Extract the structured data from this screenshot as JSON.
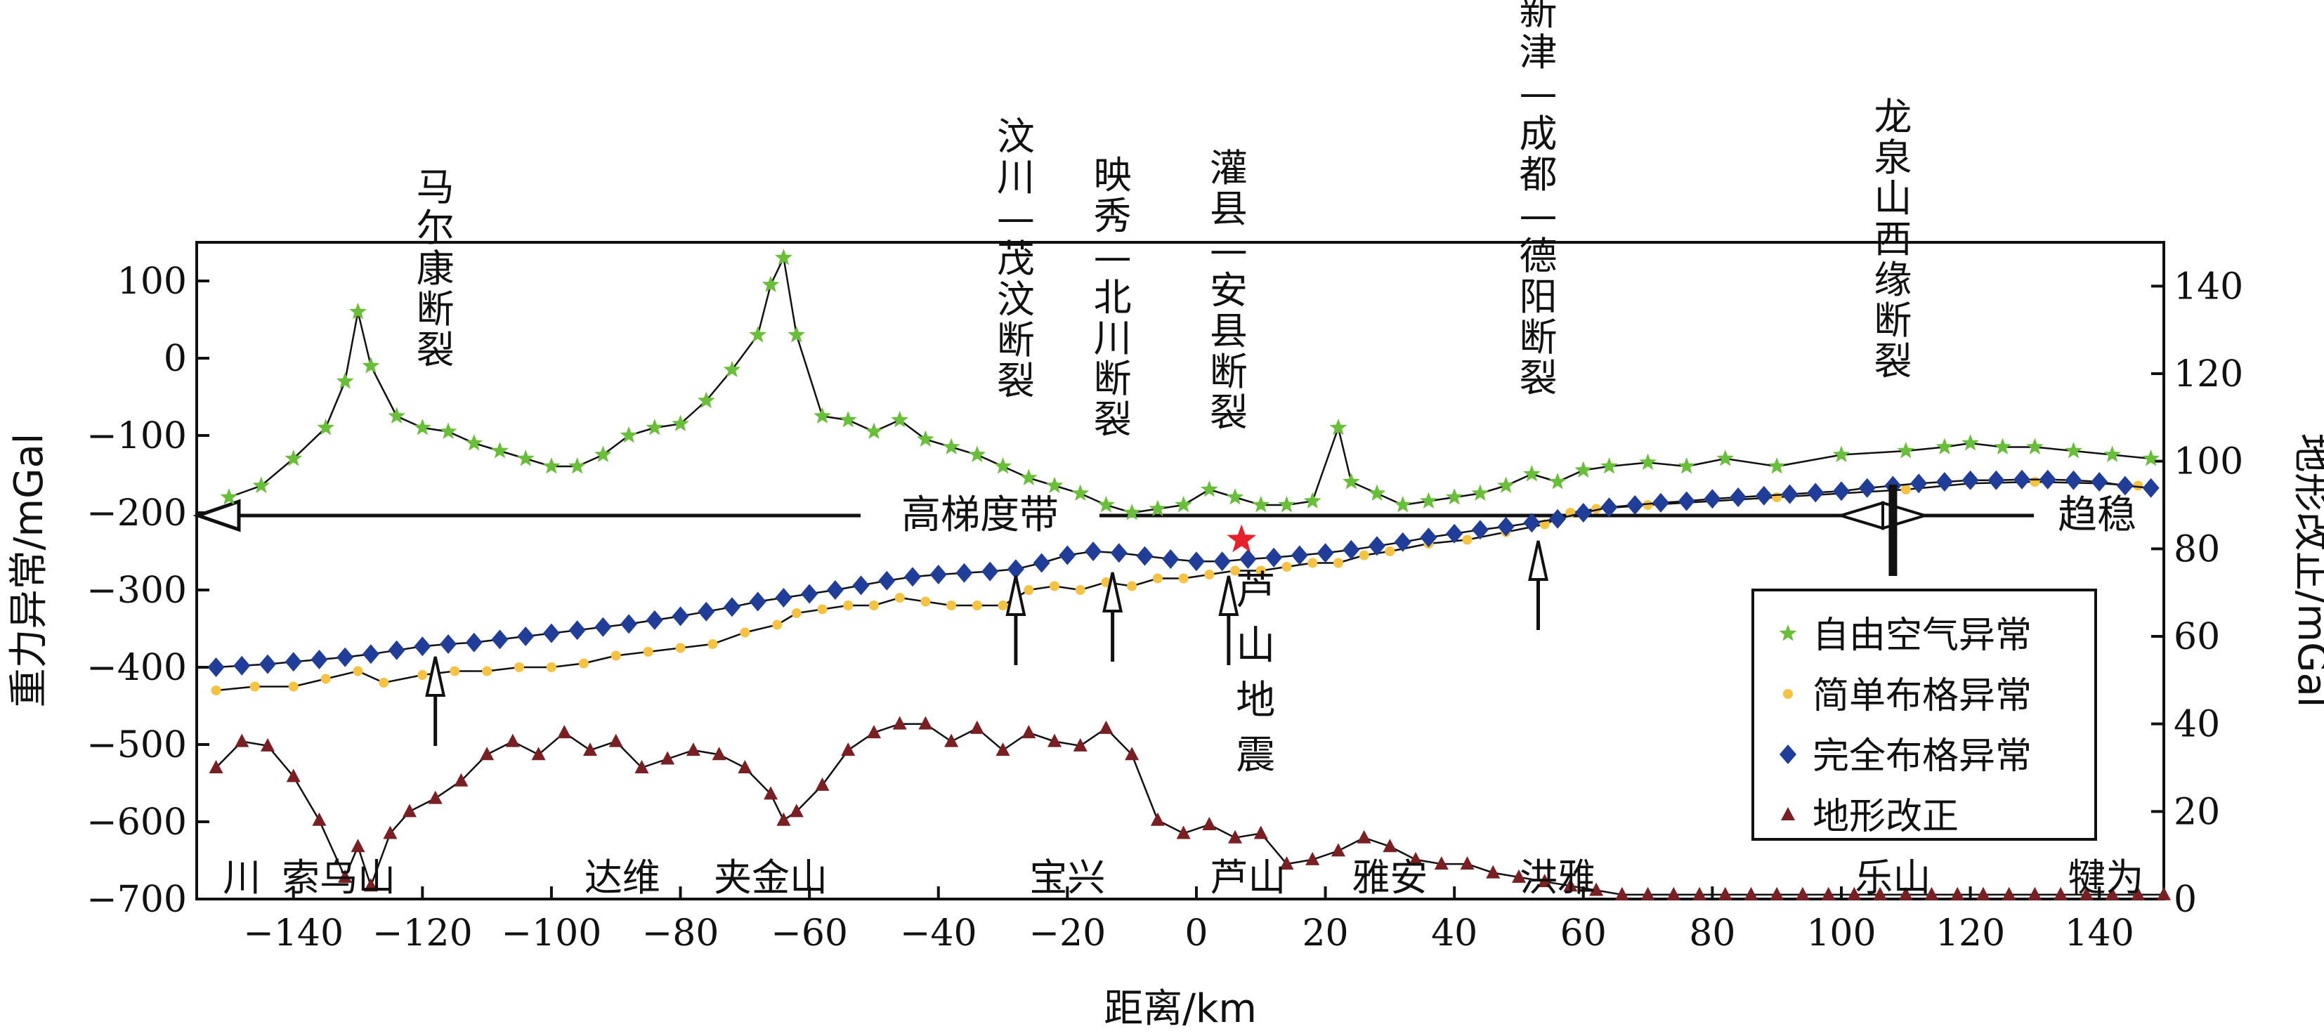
{
  "chart_data": {
    "type": "line",
    "title": "",
    "xlabel": "距离/km",
    "ylabel_left": "重力异常/mGal",
    "ylabel_right": "地形改正/mGal",
    "xlim": [
      -155,
      150
    ],
    "ylim_left": [
      -700,
      150
    ],
    "ylim_right": [
      0,
      150
    ],
    "x_ticks": [
      -140,
      -120,
      -100,
      -80,
      -60,
      -40,
      -20,
      0,
      20,
      40,
      60,
      80,
      100,
      120,
      140
    ],
    "y_left_ticks": [
      100,
      0,
      -100,
      -200,
      -300,
      -400,
      -500,
      -600,
      -700
    ],
    "y_right_ticks": [
      140,
      120,
      100,
      80,
      60,
      40,
      20,
      0
    ],
    "grid": false,
    "legend_position": "right",
    "series": [
      {
        "name": "自由空气异常",
        "axis": "left",
        "color": "#6abf3a",
        "marker": "star",
        "x": [
          -150,
          -145,
          -140,
          -135,
          -132,
          -130,
          -128,
          -124,
          -120,
          -116,
          -112,
          -108,
          -104,
          -100,
          -96,
          -92,
          -88,
          -84,
          -80,
          -76,
          -72,
          -68,
          -66,
          -64,
          -62,
          -58,
          -54,
          -50,
          -46,
          -42,
          -38,
          -34,
          -30,
          -26,
          -22,
          -18,
          -14,
          -10,
          -6,
          -2,
          2,
          6,
          10,
          14,
          18,
          22,
          24,
          28,
          32,
          36,
          40,
          44,
          48,
          52,
          56,
          60,
          64,
          70,
          76,
          82,
          90,
          100,
          110,
          116,
          120,
          125,
          130,
          136,
          142,
          148
        ],
        "y": [
          -180,
          -165,
          -130,
          -90,
          -30,
          60,
          -10,
          -75,
          -90,
          -95,
          -110,
          -120,
          -130,
          -140,
          -140,
          -125,
          -100,
          -90,
          -85,
          -55,
          -15,
          30,
          95,
          130,
          30,
          -75,
          -80,
          -95,
          -80,
          -105,
          -115,
          -125,
          -140,
          -155,
          -165,
          -175,
          -190,
          -200,
          -195,
          -190,
          -170,
          -180,
          -190,
          -190,
          -185,
          -90,
          -160,
          -175,
          -190,
          -185,
          -180,
          -175,
          -165,
          -150,
          -160,
          -145,
          -140,
          -135,
          -140,
          -130,
          -140,
          -125,
          -120,
          -115,
          -110,
          -115,
          -115,
          -120,
          -125,
          -130
        ]
      },
      {
        "name": "简单布格异常",
        "axis": "left",
        "color": "#f5c242",
        "marker": "circle",
        "x": [
          -152,
          -146,
          -140,
          -135,
          -130,
          -126,
          -120,
          -115,
          -110,
          -105,
          -100,
          -95,
          -90,
          -85,
          -80,
          -75,
          -70,
          -65,
          -62,
          -58,
          -54,
          -50,
          -46,
          -42,
          -38,
          -34,
          -30,
          -26,
          -22,
          -18,
          -14,
          -10,
          -6,
          -2,
          2,
          6,
          10,
          14,
          18,
          22,
          26,
          30,
          36,
          42,
          48,
          54,
          58,
          62,
          70,
          80,
          90,
          100,
          110,
          120,
          130,
          140,
          146
        ],
        "y": [
          -430,
          -425,
          -425,
          -415,
          -405,
          -420,
          -410,
          -405,
          -405,
          -400,
          -400,
          -395,
          -385,
          -380,
          -375,
          -370,
          -355,
          -345,
          -330,
          -325,
          -320,
          -320,
          -310,
          -315,
          -320,
          -320,
          -320,
          -300,
          -295,
          -300,
          -290,
          -295,
          -285,
          -285,
          -280,
          -275,
          -275,
          -270,
          -265,
          -265,
          -255,
          -250,
          -240,
          -235,
          -225,
          -215,
          -200,
          -195,
          -190,
          -185,
          -180,
          -175,
          -170,
          -162,
          -160,
          -162,
          -165
        ]
      },
      {
        "name": "完全布格异常",
        "axis": "left",
        "color": "#1f3d99",
        "marker": "diamond",
        "x": [
          -152,
          -148,
          -144,
          -140,
          -136,
          -132,
          -128,
          -124,
          -120,
          -116,
          -112,
          -108,
          -104,
          -100,
          -96,
          -92,
          -88,
          -84,
          -80,
          -76,
          -72,
          -68,
          -64,
          -60,
          -56,
          -52,
          -48,
          -44,
          -40,
          -36,
          -32,
          -28,
          -24,
          -20,
          -16,
          -12,
          -8,
          -4,
          0,
          4,
          8,
          12,
          16,
          20,
          24,
          28,
          32,
          36,
          40,
          44,
          48,
          52,
          56,
          60,
          64,
          68,
          72,
          76,
          80,
          84,
          88,
          92,
          96,
          100,
          104,
          108,
          112,
          116,
          120,
          124,
          128,
          132,
          136,
          140,
          144,
          148
        ],
        "y": [
          -400,
          -398,
          -396,
          -393,
          -390,
          -387,
          -383,
          -378,
          -373,
          -370,
          -368,
          -364,
          -360,
          -356,
          -352,
          -348,
          -344,
          -339,
          -334,
          -328,
          -322,
          -315,
          -310,
          -305,
          -300,
          -294,
          -288,
          -283,
          -280,
          -278,
          -276,
          -273,
          -265,
          -255,
          -250,
          -252,
          -256,
          -260,
          -263,
          -263,
          -260,
          -258,
          -255,
          -252,
          -248,
          -243,
          -238,
          -232,
          -227,
          -222,
          -218,
          -213,
          -208,
          -200,
          -193,
          -190,
          -187,
          -185,
          -182,
          -180,
          -178,
          -176,
          -174,
          -172,
          -168,
          -165,
          -162,
          -160,
          -158,
          -158,
          -157,
          -157,
          -158,
          -160,
          -165,
          -168
        ]
      },
      {
        "name": "地形改正",
        "axis": "right",
        "color": "#7a1f22",
        "marker": "triangle",
        "x": [
          -152,
          -148,
          -144,
          -140,
          -136,
          -132,
          -130,
          -128,
          -125,
          -122,
          -118,
          -114,
          -110,
          -106,
          -102,
          -98,
          -94,
          -90,
          -86,
          -82,
          -78,
          -74,
          -70,
          -66,
          -64,
          -62,
          -58,
          -54,
          -50,
          -46,
          -42,
          -38,
          -34,
          -30,
          -26,
          -22,
          -18,
          -14,
          -10,
          -6,
          -2,
          2,
          6,
          10,
          14,
          18,
          22,
          26,
          30,
          34,
          38,
          42,
          46,
          50,
          54,
          58,
          62,
          66,
          70,
          74,
          78,
          82,
          86,
          90,
          94,
          98,
          102,
          106,
          110,
          114,
          118,
          122,
          126,
          130,
          134,
          138,
          142,
          146,
          150
        ],
        "y": [
          30,
          36,
          35,
          28,
          18,
          5,
          12,
          3,
          15,
          20,
          23,
          27,
          33,
          36,
          33,
          38,
          34,
          36,
          30,
          32,
          34,
          33,
          30,
          24,
          18,
          20,
          26,
          34,
          38,
          40,
          40,
          36,
          39,
          34,
          38,
          36,
          35,
          39,
          33,
          18,
          15,
          17,
          14,
          15,
          8,
          9,
          11,
          14,
          12,
          9,
          8,
          8,
          6,
          5,
          4,
          3,
          2,
          1,
          1,
          1,
          1,
          1,
          1,
          1,
          1,
          1,
          1,
          1,
          1,
          1,
          1,
          1,
          1,
          1,
          1,
          1,
          1,
          1,
          1
        ]
      }
    ],
    "annotations": {
      "faults": [
        {
          "id": "f1",
          "label": "马尔康断裂",
          "x": -118
        },
        {
          "id": "f2",
          "label": "汶川—茂汶断裂",
          "x": -28
        },
        {
          "id": "f3",
          "label": "映秀—北川断裂",
          "x": -13
        },
        {
          "id": "f4",
          "label": "灌县—安县断裂",
          "x": 5
        },
        {
          "id": "f5",
          "label": "新津—成都—德阳断裂",
          "x": 53
        },
        {
          "id": "f6",
          "label": "龙泉山西缘断裂",
          "x": 108
        }
      ],
      "gradient_label": "高梯度带",
      "stable_label": "趋稳",
      "earthquake_label": "芦山地震",
      "earthquake_x": 7,
      "earthquake_y": -235,
      "places": [
        {
          "id": "p1",
          "label": "川",
          "x": -148
        },
        {
          "id": "p2",
          "label": "索乌山",
          "x": -133
        },
        {
          "id": "p3",
          "label": "达维",
          "x": -89
        },
        {
          "id": "p4",
          "label": "夹金山",
          "x": -66
        },
        {
          "id": "p5",
          "label": "宝兴",
          "x": -20
        },
        {
          "id": "p6",
          "label": "芦山",
          "x": 8
        },
        {
          "id": "p7",
          "label": "雅安",
          "x": 30
        },
        {
          "id": "p8",
          "label": "洪雅",
          "x": 56
        },
        {
          "id": "p9",
          "label": "乐山",
          "x": 108
        },
        {
          "id": "p10",
          "label": "犍为",
          "x": 141
        }
      ]
    }
  }
}
